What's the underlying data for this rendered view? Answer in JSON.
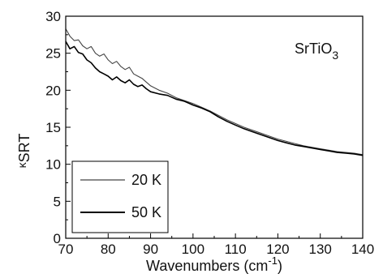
{
  "chart_data": {
    "type": "line",
    "title": "",
    "xlabel": "Wavenumbers",
    "xlabel_unit": "(cm",
    "xlabel_unit_exp": "-1",
    "xlabel_unit_close": ")",
    "ylabel_prefix": "κ",
    "ylabel_main": "SRT",
    "xlim": [
      70,
      140
    ],
    "ylim": [
      0,
      30
    ],
    "xticks": [
      70,
      80,
      90,
      100,
      110,
      120,
      130,
      140
    ],
    "yticks": [
      0,
      5,
      10,
      15,
      20,
      25,
      30
    ],
    "grid": false,
    "legend_position": "bottom-left",
    "annotation": {
      "base": "SrTiO",
      "sub": "3"
    },
    "series": [
      {
        "name": "20 K",
        "color": "#444444",
        "x": [
          70,
          71,
          72,
          73,
          74,
          75,
          76,
          77,
          78,
          79,
          80,
          81,
          82,
          83,
          84,
          85,
          86,
          87,
          88,
          89,
          90,
          92,
          94,
          96,
          98,
          100,
          102,
          104,
          106,
          108,
          110,
          112,
          114,
          116,
          118,
          120,
          122,
          124,
          126,
          128,
          130,
          132,
          134,
          136,
          138,
          140
        ],
        "y": [
          28.3,
          27.3,
          26.7,
          26.8,
          26.0,
          25.6,
          25.9,
          25.0,
          24.6,
          24.9,
          24.1,
          23.6,
          23.9,
          23.2,
          22.8,
          23.1,
          22.2,
          21.9,
          21.6,
          21.1,
          20.6,
          20.0,
          19.6,
          19.0,
          18.6,
          18.2,
          17.7,
          17.2,
          16.6,
          16.0,
          15.5,
          15.0,
          14.6,
          14.2,
          13.8,
          13.4,
          13.1,
          12.8,
          12.5,
          12.3,
          12.1,
          11.9,
          11.7,
          11.6,
          11.5,
          11.3
        ]
      },
      {
        "name": "50 K",
        "color": "#000000",
        "x": [
          70,
          71,
          72,
          73,
          74,
          75,
          76,
          77,
          78,
          79,
          80,
          81,
          82,
          83,
          84,
          85,
          86,
          87,
          88,
          89,
          90,
          92,
          94,
          96,
          98,
          100,
          102,
          104,
          106,
          108,
          110,
          112,
          114,
          116,
          118,
          120,
          122,
          124,
          126,
          128,
          130,
          132,
          134,
          136,
          138,
          140
        ],
        "y": [
          26.6,
          25.6,
          25.9,
          25.1,
          24.9,
          24.1,
          23.7,
          23.0,
          22.5,
          22.2,
          21.9,
          21.4,
          21.8,
          21.3,
          21.0,
          21.4,
          20.8,
          20.5,
          20.7,
          20.2,
          19.8,
          19.5,
          19.3,
          18.8,
          18.5,
          18.0,
          17.6,
          17.1,
          16.4,
          15.8,
          15.3,
          14.8,
          14.4,
          14.0,
          13.6,
          13.2,
          12.9,
          12.6,
          12.4,
          12.2,
          12.0,
          11.8,
          11.6,
          11.5,
          11.4,
          11.2
        ]
      }
    ]
  }
}
